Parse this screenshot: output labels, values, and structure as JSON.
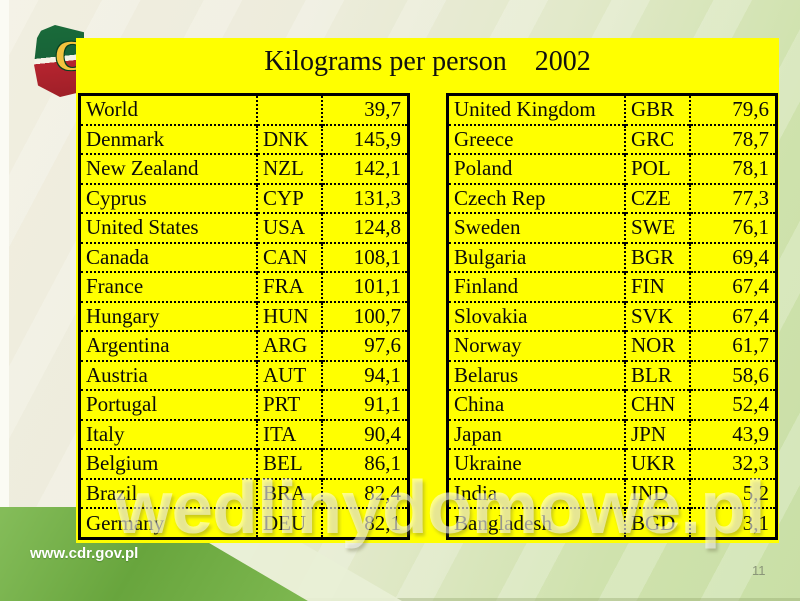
{
  "slide": {
    "title": "Kilograms per person    2002",
    "watermark": "wedlinydomowe.pl",
    "footer_url": "www.cdr.gov.pl",
    "page_number": "11",
    "logo_letter": "C"
  },
  "colors": {
    "panel_yellow": "#ffff00",
    "background_cream": "#eeecdc",
    "background_light_green": "#c9dfa6",
    "ribbon_green": "#68a53d",
    "logo_green": "#1a6b3a",
    "logo_red": "#b5242f",
    "logo_letter_gold": "#f2c23e",
    "table_border": "#000000",
    "page_number_gray": "#8a9579"
  },
  "tables": {
    "left": {
      "rows": [
        {
          "country": "World",
          "code": "",
          "value": "39,7"
        },
        {
          "country": "Denmark",
          "code": "DNK",
          "value": "145,9"
        },
        {
          "country": "New Zealand",
          "code": "NZL",
          "value": "142,1"
        },
        {
          "country": "Cyprus",
          "code": "CYP",
          "value": "131,3"
        },
        {
          "country": "United States",
          "code": "USA",
          "value": "124,8"
        },
        {
          "country": "Canada",
          "code": "CAN",
          "value": "108,1"
        },
        {
          "country": "France",
          "code": "FRA",
          "value": "101,1"
        },
        {
          "country": "Hungary",
          "code": "HUN",
          "value": "100,7"
        },
        {
          "country": "Argentina",
          "code": "ARG",
          "value": "97,6"
        },
        {
          "country": "Austria",
          "code": "AUT",
          "value": "94,1"
        },
        {
          "country": "Portugal",
          "code": "PRT",
          "value": "91,1"
        },
        {
          "country": "Italy",
          "code": "ITA",
          "value": "90,4"
        },
        {
          "country": "Belgium",
          "code": "BEL",
          "value": "86,1"
        },
        {
          "country": "Brazil",
          "code": "BRA",
          "value": "82,4"
        },
        {
          "country": "Germany",
          "code": "DEU",
          "value": "82,1"
        }
      ]
    },
    "right": {
      "rows": [
        {
          "country": "United Kingdom",
          "code": "GBR",
          "value": "79,6"
        },
        {
          "country": "Greece",
          "code": "GRC",
          "value": "78,7"
        },
        {
          "country": "Poland",
          "code": "POL",
          "value": "78,1"
        },
        {
          "country": "Czech Rep",
          "code": "CZE",
          "value": "77,3"
        },
        {
          "country": "Sweden",
          "code": "SWE",
          "value": "76,1"
        },
        {
          "country": "Bulgaria",
          "code": "BGR",
          "value": "69,4"
        },
        {
          "country": "Finland",
          "code": "FIN",
          "value": "67,4"
        },
        {
          "country": "Slovakia",
          "code": "SVK",
          "value": "67,4"
        },
        {
          "country": "Norway",
          "code": "NOR",
          "value": "61,7"
        },
        {
          "country": "Belarus",
          "code": "BLR",
          "value": "58,6"
        },
        {
          "country": "China",
          "code": "CHN",
          "value": "52,4"
        },
        {
          "country": "Japan",
          "code": "JPN",
          "value": "43,9"
        },
        {
          "country": "Ukraine",
          "code": "UKR",
          "value": "32,3"
        },
        {
          "country": "India",
          "code": "IND",
          "value": "5,2"
        },
        {
          "country": "Bangladesh",
          "code": "BGD",
          "value": "3,1"
        }
      ]
    }
  }
}
